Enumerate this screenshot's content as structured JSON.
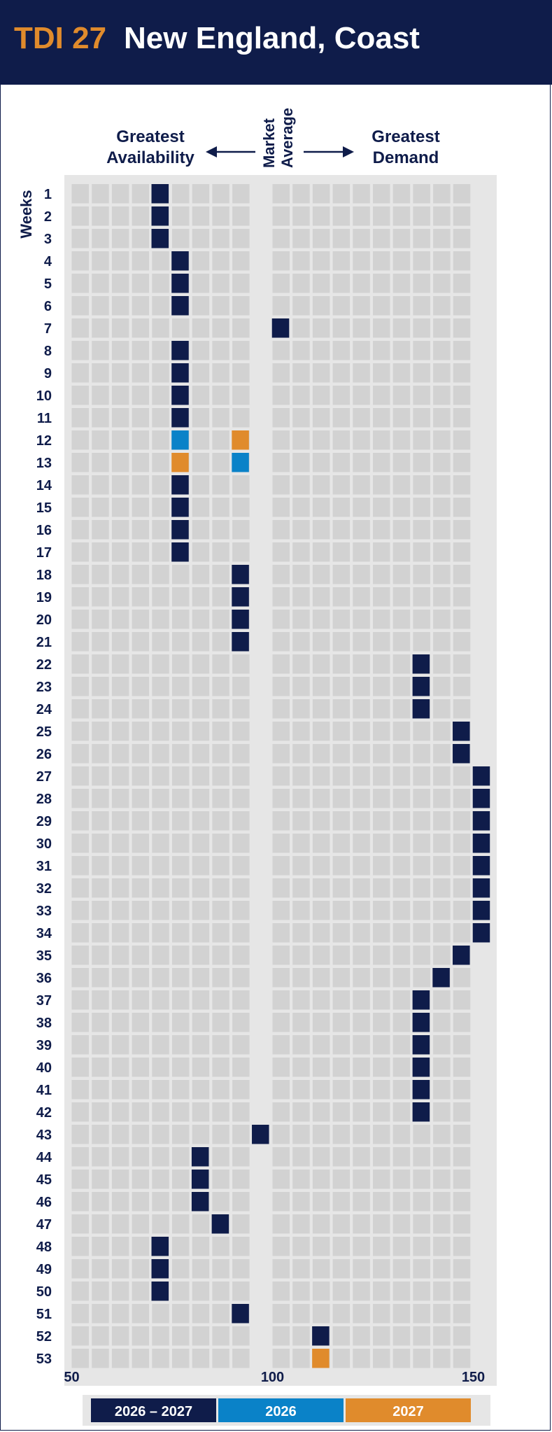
{
  "header": {
    "code": "TDI 27",
    "title": "New England, Coast"
  },
  "colors": {
    "navy": "#0f1c4a",
    "blue": "#0a82c8",
    "orange": "#e08b2c",
    "cell": "#d3d3d3",
    "panel": "#e6e6e6"
  },
  "chart_data": {
    "type": "heatmap",
    "ylabel": "Weeks",
    "left_label": [
      "Greatest",
      "Availability"
    ],
    "center_label": [
      "Market",
      "Average"
    ],
    "right_label": [
      "Greatest",
      "Demand"
    ],
    "x_ticks": [
      50,
      100,
      150
    ],
    "xlim": [
      50,
      150
    ],
    "weeks": [
      1,
      2,
      3,
      4,
      5,
      6,
      7,
      8,
      9,
      10,
      11,
      12,
      13,
      14,
      15,
      16,
      17,
      18,
      19,
      20,
      21,
      22,
      23,
      24,
      25,
      26,
      27,
      28,
      29,
      30,
      31,
      32,
      33,
      34,
      35,
      36,
      37,
      38,
      39,
      40,
      41,
      42,
      43,
      44,
      45,
      46,
      47,
      48,
      49,
      50,
      51,
      52,
      53
    ],
    "legend": [
      {
        "label": "2026 – 2027",
        "color": "#0f1c4a"
      },
      {
        "label": "2026",
        "color": "#0a82c8"
      },
      {
        "label": "2027",
        "color": "#e08b2c"
      }
    ],
    "series": [
      {
        "name": "2026 – 2027",
        "color": "#0f1c4a",
        "points": [
          [
            1,
            72
          ],
          [
            2,
            72
          ],
          [
            3,
            72
          ],
          [
            4,
            77
          ],
          [
            5,
            77
          ],
          [
            6,
            77
          ],
          [
            7,
            102
          ],
          [
            8,
            77
          ],
          [
            9,
            77
          ],
          [
            10,
            77
          ],
          [
            11,
            77
          ],
          [
            14,
            77
          ],
          [
            15,
            77
          ],
          [
            16,
            77
          ],
          [
            17,
            77
          ],
          [
            18,
            92
          ],
          [
            19,
            92
          ],
          [
            20,
            92
          ],
          [
            21,
            92
          ],
          [
            22,
            137
          ],
          [
            23,
            137
          ],
          [
            24,
            137
          ],
          [
            25,
            147
          ],
          [
            26,
            147
          ],
          [
            27,
            152
          ],
          [
            28,
            152
          ],
          [
            29,
            152
          ],
          [
            30,
            152
          ],
          [
            31,
            152
          ],
          [
            32,
            152
          ],
          [
            33,
            152
          ],
          [
            34,
            152
          ],
          [
            35,
            147
          ],
          [
            36,
            142
          ],
          [
            37,
            137
          ],
          [
            38,
            137
          ],
          [
            39,
            137
          ],
          [
            40,
            137
          ],
          [
            41,
            137
          ],
          [
            42,
            137
          ],
          [
            43,
            97
          ],
          [
            44,
            82
          ],
          [
            45,
            82
          ],
          [
            46,
            82
          ],
          [
            47,
            87
          ],
          [
            48,
            72
          ],
          [
            49,
            72
          ],
          [
            50,
            72
          ],
          [
            51,
            92
          ],
          [
            52,
            112
          ]
        ]
      },
      {
        "name": "2026",
        "color": "#0a82c8",
        "points": [
          [
            12,
            77
          ],
          [
            13,
            92
          ]
        ]
      },
      {
        "name": "2027",
        "color": "#e08b2c",
        "points": [
          [
            12,
            92
          ],
          [
            13,
            77
          ],
          [
            53,
            112
          ]
        ]
      }
    ]
  }
}
